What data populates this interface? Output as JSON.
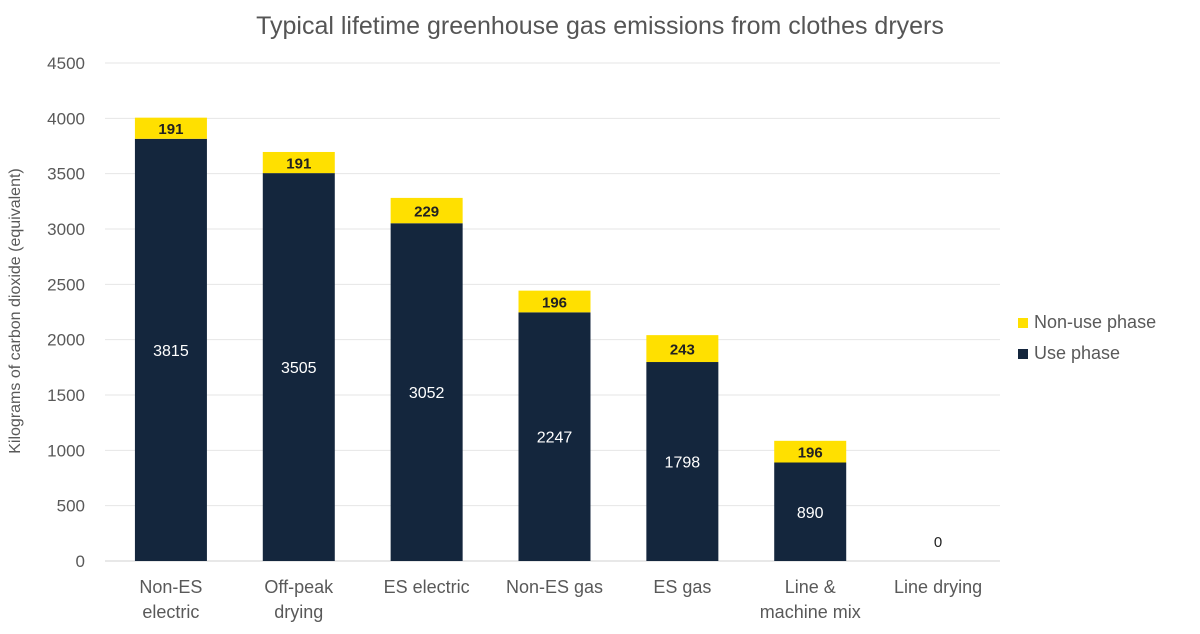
{
  "chart_data": {
    "type": "bar",
    "stacked": true,
    "title": "Typical lifetime greenhouse gas emissions from clothes dryers",
    "xlabel": "",
    "ylabel": "Kilograms of carbon dioxide (equivalent)",
    "ylim": [
      0,
      4500
    ],
    "yticks": [
      0,
      500,
      1000,
      1500,
      2000,
      2500,
      3000,
      3500,
      4000,
      4500
    ],
    "grid": true,
    "legend_position": "right",
    "categories": [
      [
        "Non-ES",
        "electric"
      ],
      [
        "Off-peak",
        "drying"
      ],
      [
        "ES electric"
      ],
      [
        "Non-ES gas"
      ],
      [
        "ES gas"
      ],
      [
        "Line &",
        "machine mix"
      ],
      [
        "Line drying"
      ]
    ],
    "series": [
      {
        "name": "Use phase",
        "color": "#14263d",
        "values": [
          3815,
          3505,
          3052,
          2247,
          1798,
          890,
          0
        ]
      },
      {
        "name": "Non-use phase",
        "color": "#ffe000",
        "values": [
          191,
          191,
          229,
          196,
          243,
          196,
          0
        ]
      }
    ]
  }
}
